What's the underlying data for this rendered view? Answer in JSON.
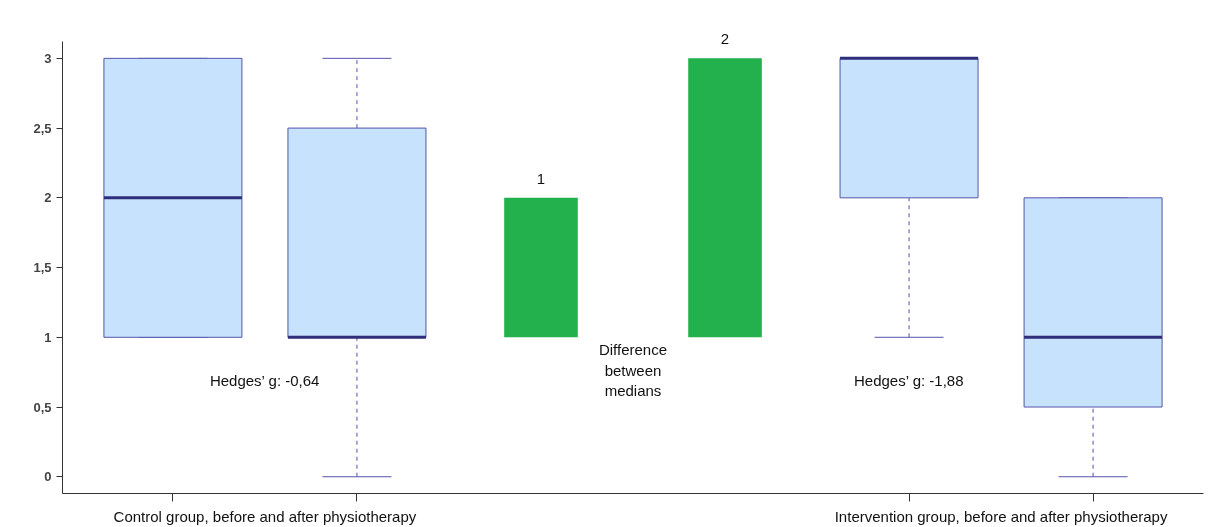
{
  "chart_data": {
    "type": "box",
    "categories": [
      null,
      null,
      null,
      null,
      null,
      null
    ],
    "ylim": [
      -0.12,
      3.12
    ],
    "yticks": [
      0,
      {
        "value": 0.5,
        "label": "0,5"
      },
      1,
      {
        "value": 1.5,
        "label": "1,5"
      },
      2,
      {
        "value": 2.5,
        "label": "2,5"
      },
      3
    ],
    "series": [
      {
        "color": "#c7e2fd",
        "boxes": [
          {
            "low": 1,
            "q1": 1,
            "median": 2,
            "q3": 3,
            "high": 3
          },
          {
            "low": 0,
            "q1": 1,
            "median": 1,
            "q3": 2.5,
            "high": 3
          },
          null,
          null,
          {
            "low": 1,
            "q1": 2,
            "median": 3,
            "q3": 3,
            "high": 3
          },
          {
            "low": 0,
            "q1": 0.5,
            "median": 1,
            "q3": 2,
            "high": 2
          }
        ]
      },
      {
        "type": "bar",
        "color": "#22b14c",
        "base": [
          null,
          null,
          1,
          1,
          null,
          null
        ],
        "values": [
          null,
          null,
          1,
          2,
          null,
          null
        ]
      }
    ],
    "data_labels": true,
    "annotations": [
      "Hedges’ g: -0,64",
      "Difference\nbetween\nmedians",
      "Hedges’ g: -1,88",
      "Control group, before and after physiotherapy",
      "Intervention group, before and after physiotherapy"
    ]
  }
}
